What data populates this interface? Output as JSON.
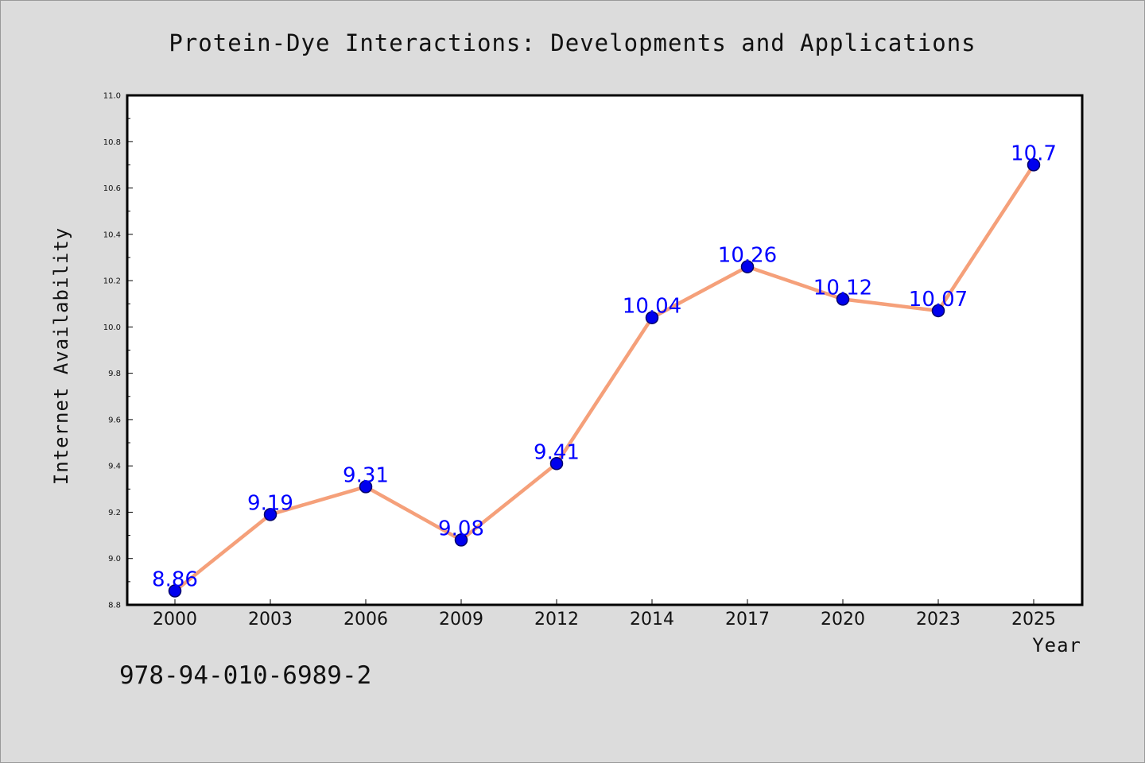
{
  "footer": {
    "code": "978-94-010-6989-2"
  },
  "colors": {
    "background": "#dcdcdc",
    "plot_background": "#ffffff",
    "line": "#f5a07a",
    "marker_fill": "#0000ee",
    "marker_edge": "#00006b",
    "label_text": "#0000ff"
  },
  "chart_data": {
    "type": "line",
    "title": "Protein-Dye Interactions: Developments and Applications",
    "xlabel": "Year",
    "ylabel": "Internet Availability",
    "categories": [
      "2000",
      "2003",
      "2006",
      "2009",
      "2012",
      "2014",
      "2017",
      "2020",
      "2023",
      "2025"
    ],
    "series": [
      {
        "values": [
          8.86,
          9.19,
          9.31,
          9.08,
          9.41,
          10.04,
          10.26,
          10.12,
          10.07,
          10.7
        ],
        "labels": [
          "8.86",
          "9.19",
          "9.31",
          "9.08",
          "9.41",
          "10.04",
          "10.26",
          "10.12",
          "10.07",
          "10.7"
        ]
      }
    ],
    "ylim": [
      8.8,
      11.0
    ],
    "yticks": [
      "8.8",
      "9.0",
      "9.2",
      "9.4",
      "9.6",
      "9.8",
      "10.0",
      "10.2",
      "10.4",
      "10.6",
      "10.8",
      "11.0"
    ],
    "grid": false,
    "legend": "none"
  }
}
